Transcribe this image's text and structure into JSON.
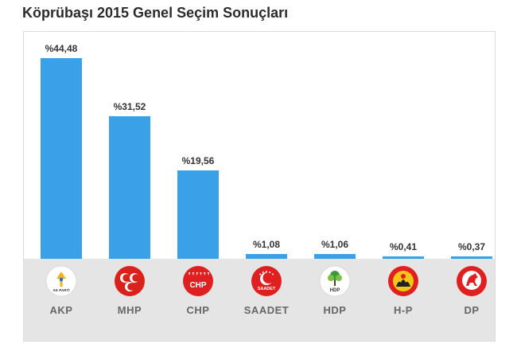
{
  "title": "Köprübaşı 2015 Genel Seçim Sonuçları",
  "colors": {
    "bar": "#3aa0e8",
    "band": "#e5e5e5"
  },
  "chart_data": {
    "type": "bar",
    "title": "Köprübaşı 2015 Genel Seçim Sonuçları",
    "categories": [
      "AKP",
      "MHP",
      "CHP",
      "SAADET",
      "HDP",
      "H-P",
      "DP"
    ],
    "values": [
      44.48,
      31.52,
      19.56,
      1.08,
      1.06,
      0.41,
      0.37
    ],
    "value_labels": [
      "%44,48",
      "%31,52",
      "%19,56",
      "%1,08",
      "%1,06",
      "%0,41",
      "%0,37"
    ],
    "logos": [
      "akp-logo",
      "mhp-logo",
      "chp-logo",
      "saadet-logo",
      "hdp-logo",
      "hp-logo",
      "dp-logo"
    ],
    "logo_texts": [
      "AK PARTİ",
      "",
      "CHP",
      "SAADET",
      "HDP",
      "",
      ""
    ],
    "ylim": [
      0,
      48
    ],
    "grid": false,
    "xlabel": "",
    "ylabel": ""
  }
}
